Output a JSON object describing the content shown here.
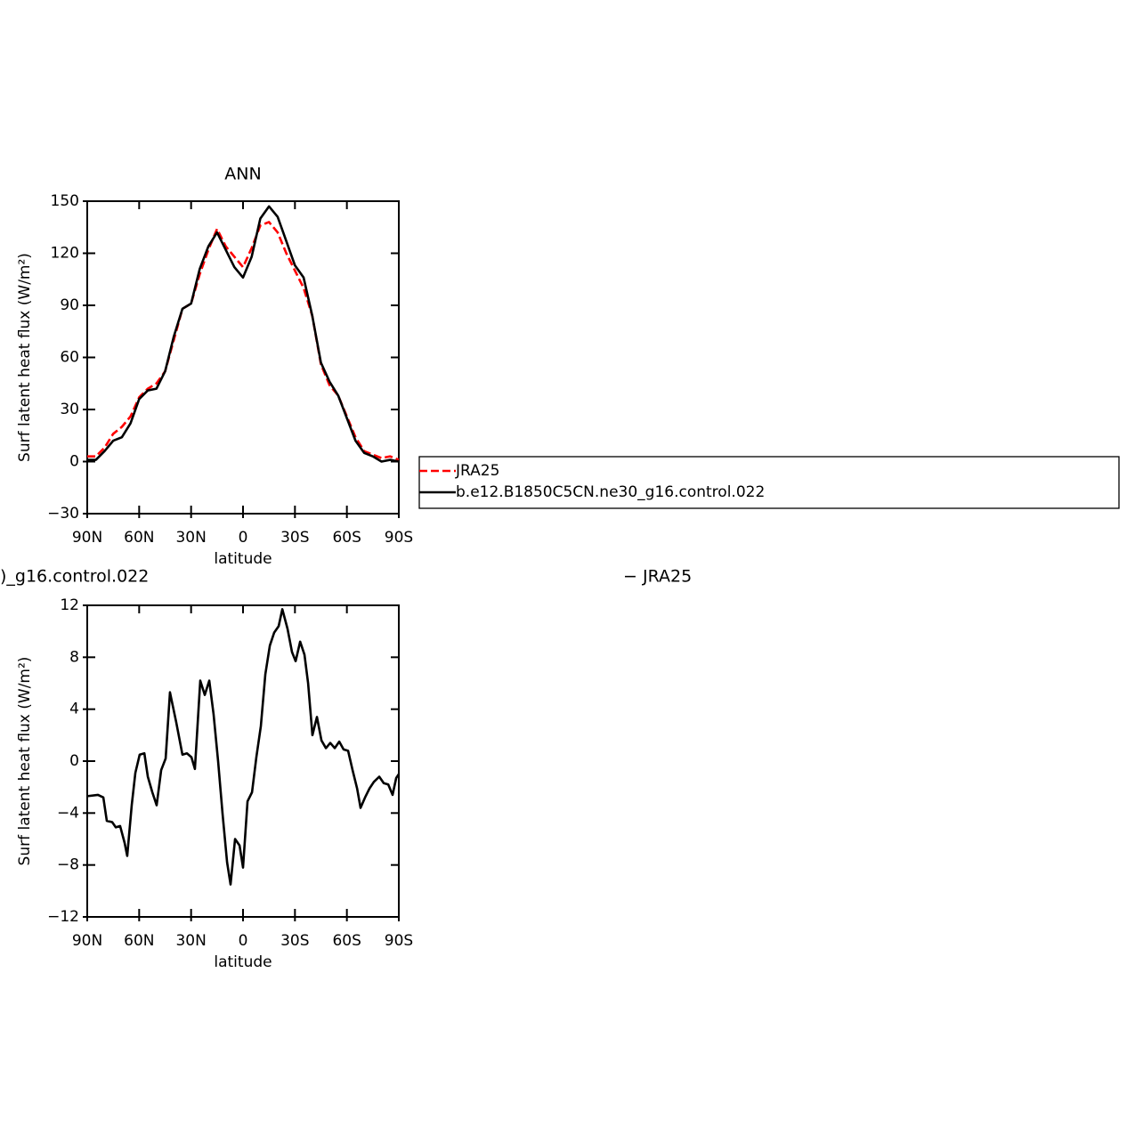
{
  "chart_data": [
    {
      "type": "line",
      "title": "ANN",
      "ylabel": "Surf latent heat flux (W/m²)",
      "xlabel": "latitude",
      "x": [
        90,
        85,
        80,
        75,
        70,
        65,
        60,
        55,
        50,
        45,
        40,
        35,
        30,
        25,
        20,
        15,
        10,
        5,
        0,
        -5,
        -10,
        -15,
        -20,
        -25,
        -30,
        -35,
        -40,
        -45,
        -50,
        -55,
        -60,
        -65,
        -70,
        -75,
        -80,
        -85,
        -90
      ],
      "series": [
        {
          "name": "JRA25",
          "color": "#ff0000",
          "style": "dashed",
          "values": [
            3,
            3,
            8,
            16,
            20,
            26,
            37,
            42,
            45,
            52,
            70,
            88,
            91,
            108,
            122,
            134,
            124,
            118,
            112,
            123,
            136,
            138,
            132,
            120,
            110,
            100,
            84,
            56,
            44,
            38,
            26,
            14,
            6,
            4,
            2,
            3,
            1
          ]
        },
        {
          "name": "b.e12.B1850C5CN.ne30_g16.control.022",
          "color": "#000000",
          "style": "solid",
          "values": [
            1,
            1,
            6,
            12,
            14,
            22,
            36,
            41,
            42,
            52,
            72,
            88,
            91,
            111,
            124,
            132,
            122,
            112,
            106,
            118,
            140,
            147,
            141,
            127,
            113,
            106,
            84,
            57,
            46,
            38,
            25,
            12,
            5,
            3,
            0,
            1,
            0
          ]
        }
      ],
      "xlim": [
        90,
        -90
      ],
      "xticks": [
        {
          "value": 90,
          "label": "90N"
        },
        {
          "value": 60,
          "label": "60N"
        },
        {
          "value": 30,
          "label": "30N"
        },
        0,
        {
          "value": -30,
          "label": "30S"
        },
        {
          "value": -60,
          "label": "60S"
        },
        {
          "value": -90,
          "label": "90S"
        }
      ],
      "ylim": [
        -30,
        150
      ],
      "yticks": [
        {
          "value": -30,
          "label": "−30"
        },
        0,
        30,
        60,
        90,
        120,
        150
      ]
    },
    {
      "type": "line",
      "title_left": ")_g16.control.022",
      "title_right": "− JRA25",
      "ylabel": "Surf latent heat flux (W/m²)",
      "xlabel": "latitude",
      "x": [
        90,
        83.8,
        80.7,
        78.7,
        75.6,
        73.5,
        71,
        68.4,
        66.9,
        64.3,
        62.2,
        59.7,
        57,
        55,
        52.4,
        49.9,
        47.3,
        44.7,
        42.2,
        38.6,
        35,
        32.4,
        29.8,
        27.8,
        24.7,
        22.1,
        19.5,
        17,
        14.4,
        11.8,
        9.2,
        7.2,
        4.6,
        2,
        0,
        -2.6,
        -5.2,
        -7.7,
        -10.3,
        -12.9,
        -15.5,
        -18,
        -20.6,
        -22.7,
        -25.7,
        -28.3,
        -30.4,
        -33,
        -35.5,
        -37.6,
        -40.1,
        -42.7,
        -45.3,
        -47.9,
        -50.4,
        -53,
        -55.6,
        -58.1,
        -60.7,
        -63.3,
        -65.9,
        -67.9,
        -70.5,
        -73.1,
        -75.6,
        -78.7,
        -81.3,
        -83.9,
        -86.4,
        -88.5,
        -90
      ],
      "series": [
        {
          "name": "b.e12.B1850C5CN.ne30_g16.control.022",
          "color": "#000000",
          "style": "solid",
          "values": [
            -2.7,
            -2.6,
            -2.8,
            -4.6,
            -4.7,
            -5.1,
            -5.0,
            -6.3,
            -7.3,
            -3.4,
            -0.9,
            0.5,
            0.6,
            -1.2,
            -2.4,
            -3.4,
            -0.7,
            0.2,
            5.3,
            3.0,
            0.5,
            0.6,
            0.3,
            -0.6,
            6.2,
            5.1,
            6.2,
            3.6,
            0,
            -4.1,
            -7.8,
            -9.5,
            -6.0,
            -6.5,
            -8.2,
            -3.1,
            -2.4,
            0.3,
            2.7,
            6.7,
            8.9,
            9.9,
            10.4,
            11.7,
            10.2,
            8.4,
            7.7,
            9.2,
            8.2,
            6.0,
            2.0,
            3.4,
            1.6,
            1.0,
            1.4,
            1.0,
            1.5,
            0.9,
            0.8,
            -0.7,
            -2.1,
            -3.6,
            -2.8,
            -2.1,
            -1.6,
            -1.2,
            -1.7,
            -1.8,
            -2.6,
            -1.3,
            -1.0
          ]
        }
      ],
      "xlim": [
        90,
        -90
      ],
      "xticks": [
        {
          "value": 90,
          "label": "90N"
        },
        {
          "value": 60,
          "label": "60N"
        },
        {
          "value": 30,
          "label": "30N"
        },
        0,
        {
          "value": -30,
          "label": "30S"
        },
        {
          "value": -60,
          "label": "60S"
        },
        {
          "value": -90,
          "label": "90S"
        }
      ],
      "ylim": [
        -12,
        12
      ],
      "yticks": [
        {
          "value": -12,
          "label": "−12"
        },
        {
          "value": -8,
          "label": "−8"
        },
        {
          "value": -4,
          "label": "−4"
        },
        0,
        4,
        8,
        12
      ]
    }
  ]
}
